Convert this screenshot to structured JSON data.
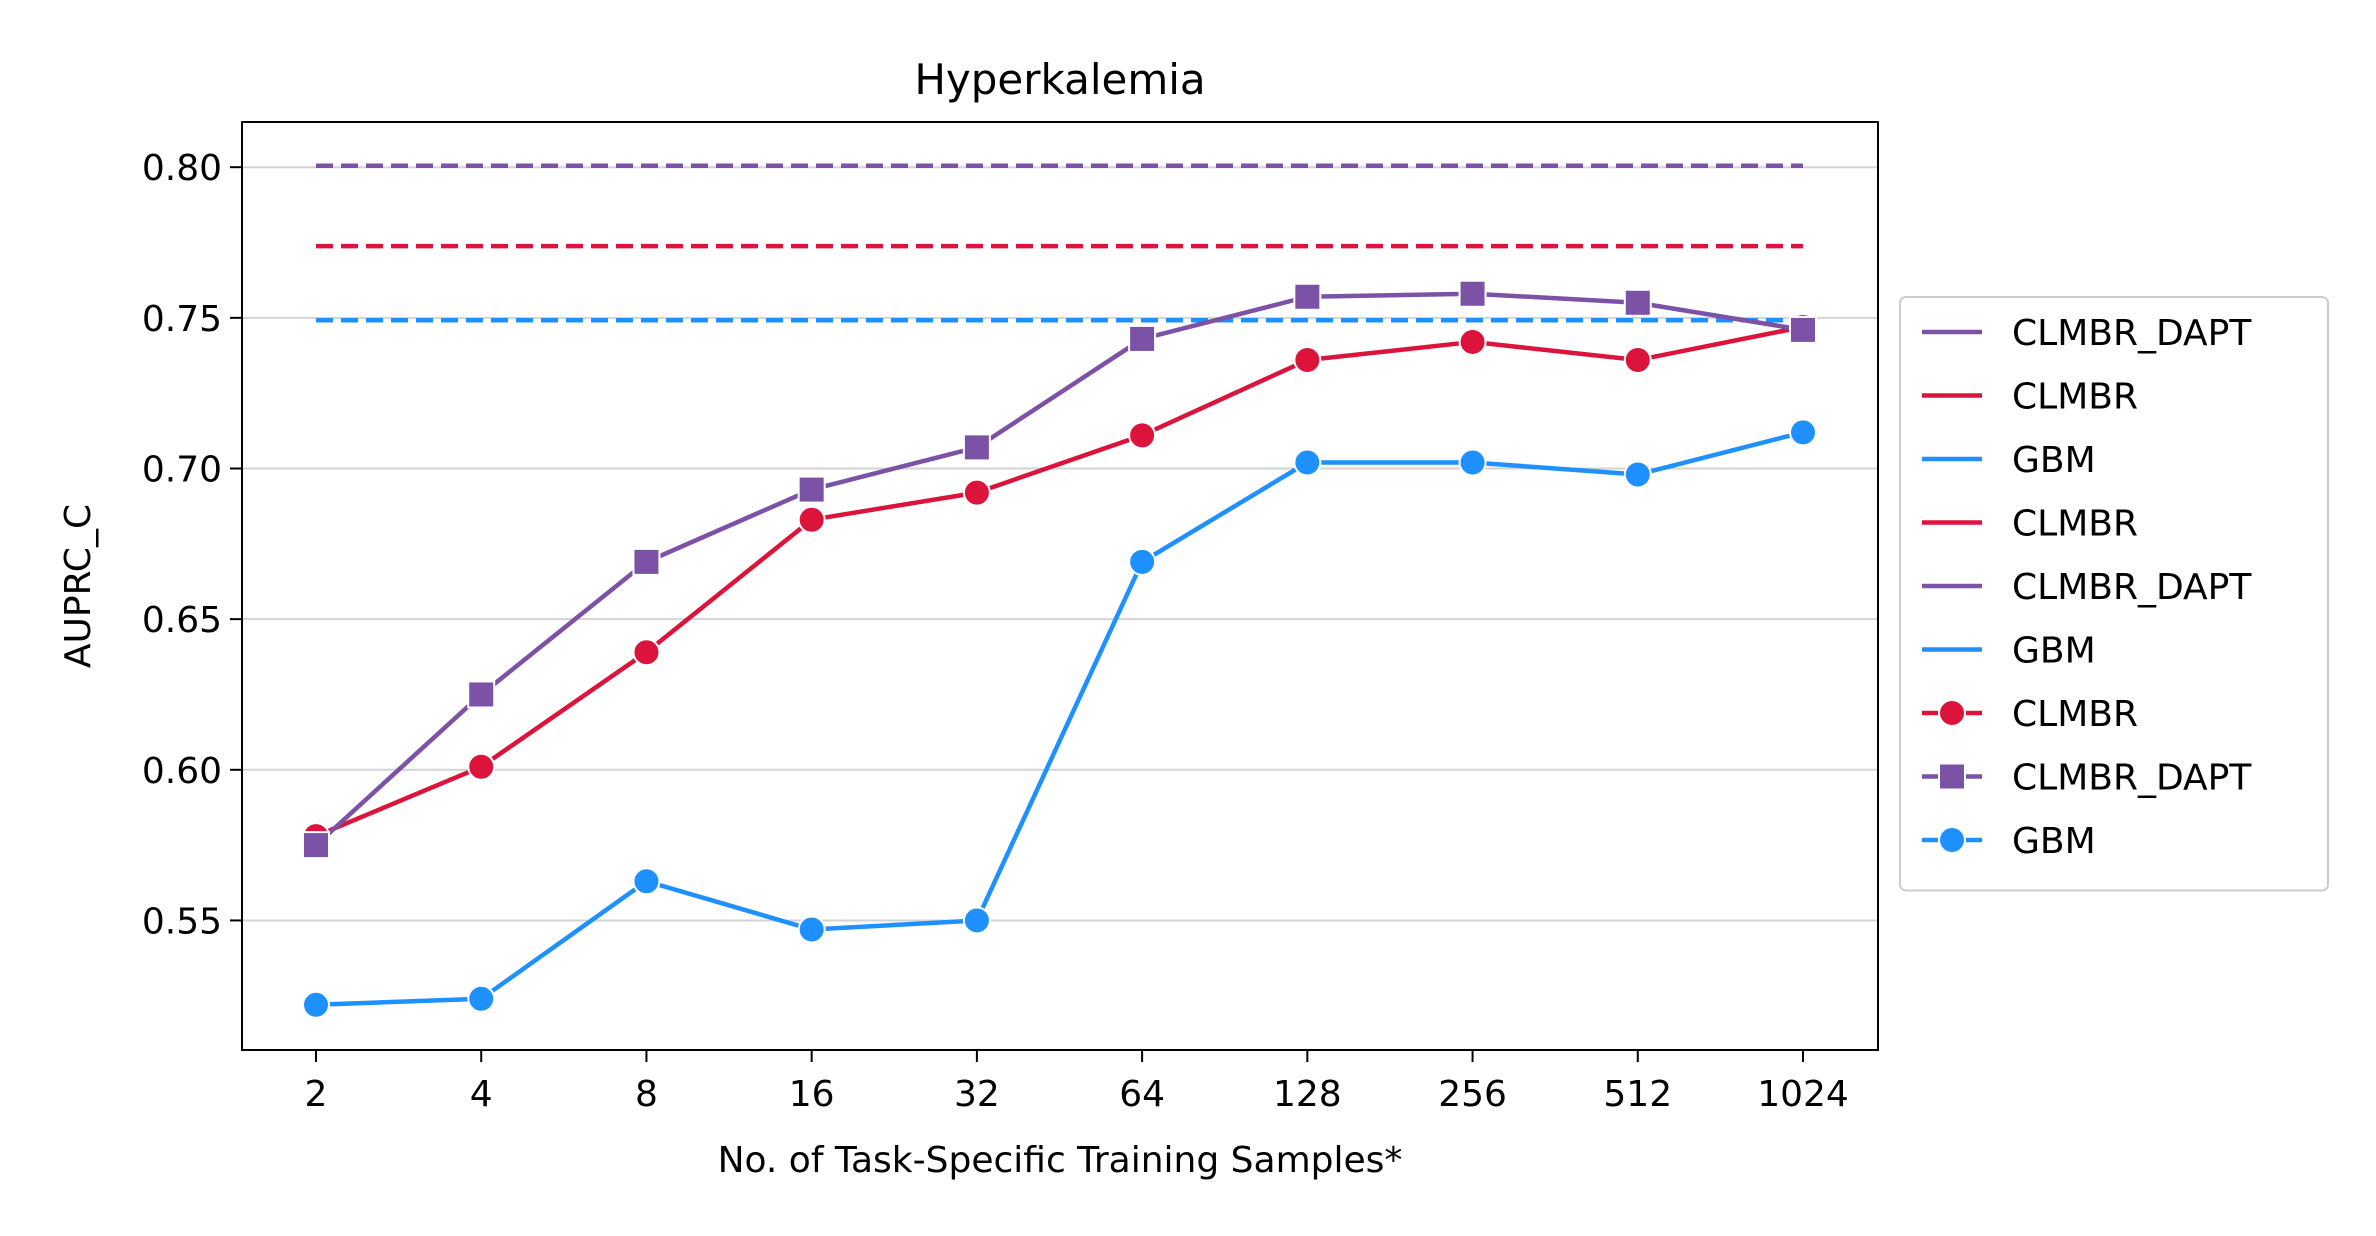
{
  "chart_data": {
    "type": "line",
    "title": "Hyperkalemia",
    "xlabel": "No. of Task-Specific Training Samples*",
    "ylabel": "AUPRC_C",
    "categories": [
      "2",
      "4",
      "8",
      "16",
      "32",
      "64",
      "128",
      "256",
      "512",
      "1024"
    ],
    "ylim": [
      0.507,
      0.815
    ],
    "yticks": [
      0.55,
      0.6,
      0.65,
      0.7,
      0.75,
      0.8
    ],
    "ytick_labels": [
      "0.55",
      "0.60",
      "0.65",
      "0.70",
      "0.75",
      "0.80"
    ],
    "grid": "horizontal",
    "legend_position": "outside-right",
    "reference_lines": [
      {
        "name": "CLMBR_DAPT",
        "value": 0.8005,
        "color": "#7b52a6",
        "style": "dashed"
      },
      {
        "name": "CLMBR",
        "value": 0.7738,
        "color": "#dc143c",
        "style": "dashed"
      },
      {
        "name": "GBM",
        "value": 0.7492,
        "color": "#1e90ff",
        "style": "dashed"
      }
    ],
    "series": [
      {
        "name": "CLMBR",
        "color": "#dc143c",
        "marker": "circle",
        "values": [
          0.578,
          0.601,
          0.639,
          0.683,
          0.692,
          0.711,
          0.736,
          0.742,
          0.736,
          0.747
        ]
      },
      {
        "name": "CLMBR_DAPT",
        "color": "#7b52a6",
        "marker": "square",
        "values": [
          0.575,
          0.625,
          0.669,
          0.693,
          0.707,
          0.743,
          0.757,
          0.758,
          0.755,
          0.746
        ]
      },
      {
        "name": "GBM",
        "color": "#1e90ff",
        "marker": "circle",
        "values": [
          0.522,
          0.524,
          0.563,
          0.547,
          0.55,
          0.669,
          0.702,
          0.702,
          0.698,
          0.712
        ]
      }
    ],
    "legend": [
      {
        "label": "CLMBR_DAPT",
        "color": "#7b52a6",
        "marker": "none"
      },
      {
        "label": "CLMBR",
        "color": "#dc143c",
        "marker": "none"
      },
      {
        "label": "GBM",
        "color": "#1e90ff",
        "marker": "none"
      },
      {
        "label": "CLMBR",
        "color": "#dc143c",
        "marker": "none"
      },
      {
        "label": "CLMBR_DAPT",
        "color": "#7b52a6",
        "marker": "none"
      },
      {
        "label": "GBM",
        "color": "#1e90ff",
        "marker": "none"
      },
      {
        "label": "CLMBR",
        "color": "#dc143c",
        "marker": "circle"
      },
      {
        "label": "CLMBR_DAPT",
        "color": "#7b52a6",
        "marker": "square"
      },
      {
        "label": "GBM",
        "color": "#1e90ff",
        "marker": "circle"
      }
    ]
  }
}
